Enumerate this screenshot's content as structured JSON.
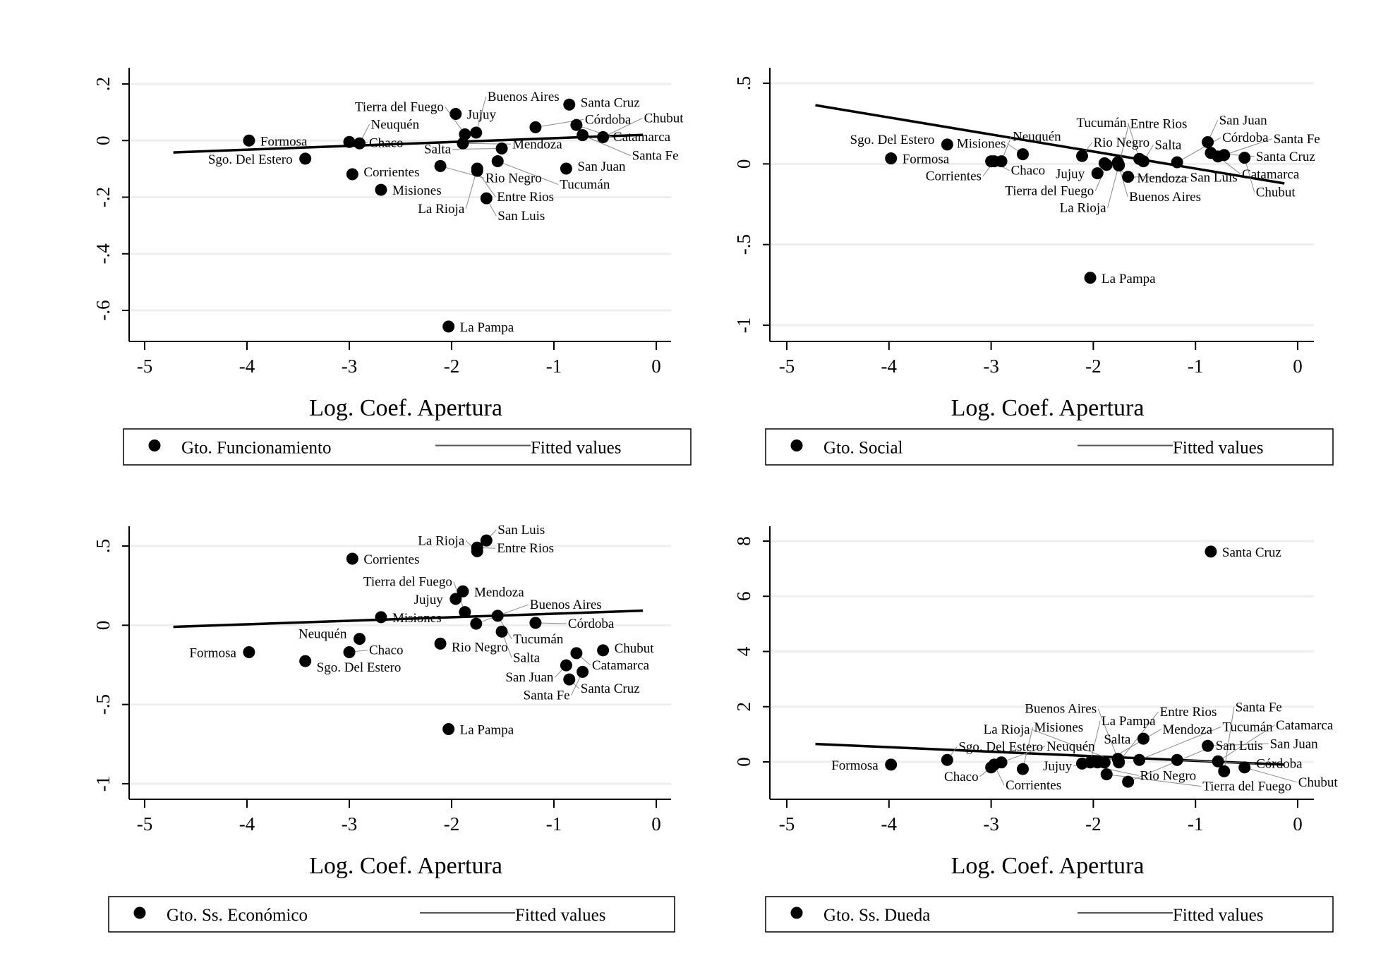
{
  "chart_data": [
    {
      "type": "scatter",
      "xlabel": "Log. Coef. Apertura",
      "ylabel": "",
      "xlim": [
        -5.1,
        0.15
      ],
      "ylim": [
        -0.72,
        0.26
      ],
      "xticks": [
        "-5",
        "-4",
        "-3",
        "-2",
        "-1",
        "0"
      ],
      "xtick_values": [
        -5,
        -4,
        -3,
        -2,
        -1,
        0
      ],
      "yticks": [
        ".2",
        "0",
        "-.2",
        "-.4",
        "-.6"
      ],
      "ytick_values": [
        0.2,
        0,
        -0.2,
        -0.4,
        -0.6
      ],
      "grid": true,
      "legend": {
        "position": "bottom",
        "series": "Gto. Funcionamiento",
        "fit": "Fitted values"
      },
      "fitted": [
        [
          -4.72,
          -0.042
        ],
        [
          -0.13,
          0.02
        ]
      ],
      "points": [
        {
          "label": "Formosa",
          "x": -3.98,
          "y": 0.0
        },
        {
          "label": "Sgo. Del Estero",
          "x": -3.43,
          "y": -0.064
        },
        {
          "label": "Chaco",
          "x": -3.0,
          "y": -0.005
        },
        {
          "label": "Corrientes",
          "x": -2.97,
          "y": -0.119
        },
        {
          "label": "Neuquén",
          "x": -2.9,
          "y": -0.01
        },
        {
          "label": "Misiones",
          "x": -2.69,
          "y": -0.174
        },
        {
          "label": "Rio Negro",
          "x": -2.11,
          "y": -0.09
        },
        {
          "label": "La Pampa",
          "x": -2.03,
          "y": -0.657
        },
        {
          "label": "Jujuy",
          "x": -1.96,
          "y": 0.094
        },
        {
          "label": "Mendoza",
          "x": -1.89,
          "y": -0.01
        },
        {
          "label": "Tierra del Fuego",
          "x": -1.87,
          "y": 0.022
        },
        {
          "label": "Buenos Aires",
          "x": -1.76,
          "y": 0.028
        },
        {
          "label": "Entre Rios",
          "x": -1.75,
          "y": -0.107
        },
        {
          "label": "La Rioja",
          "x": -1.75,
          "y": -0.099
        },
        {
          "label": "San Luis",
          "x": -1.66,
          "y": -0.204
        },
        {
          "label": "Tucumán",
          "x": -1.55,
          "y": -0.073
        },
        {
          "label": "Salta",
          "x": -1.51,
          "y": -0.028
        },
        {
          "label": "Córdoba",
          "x": -1.18,
          "y": 0.047
        },
        {
          "label": "San Juan",
          "x": -0.88,
          "y": -0.099
        },
        {
          "label": "Santa Cruz",
          "x": -0.85,
          "y": 0.127
        },
        {
          "label": "Catamarca",
          "x": -0.78,
          "y": 0.055
        },
        {
          "label": "Santa Fe",
          "x": -0.72,
          "y": 0.019
        },
        {
          "label": "Chubut",
          "x": -0.52,
          "y": 0.012
        }
      ]
    },
    {
      "type": "scatter",
      "xlabel": "Log. Coef. Apertura",
      "ylabel": "",
      "xlim": [
        -5.1,
        0.15
      ],
      "ylim": [
        -1.1,
        0.6
      ],
      "xticks": [
        "-5",
        "-4",
        "-3",
        "-2",
        "-1",
        "0"
      ],
      "xtick_values": [
        -5,
        -4,
        -3,
        -2,
        -1,
        0
      ],
      "yticks": [
        ".5",
        "0",
        "-.5",
        "-1"
      ],
      "ytick_values": [
        0.5,
        0,
        -0.5,
        -1
      ],
      "grid": true,
      "legend": {
        "position": "bottom",
        "series": "Gto. Social",
        "fit": "Fitted values"
      },
      "fitted": [
        [
          -4.72,
          0.364
        ],
        [
          -0.13,
          -0.121
        ]
      ],
      "points": [
        {
          "label": "Formosa",
          "x": -3.98,
          "y": 0.034
        },
        {
          "label": "Sgo. Del Estero",
          "x": -3.43,
          "y": 0.12
        },
        {
          "label": "Chaco",
          "x": -3.0,
          "y": 0.016
        },
        {
          "label": "Corrientes",
          "x": -2.97,
          "y": 0.016
        },
        {
          "label": "Neuquén",
          "x": -2.9,
          "y": 0.016
        },
        {
          "label": "Misiones",
          "x": -2.69,
          "y": 0.06
        },
        {
          "label": "Rio Negro",
          "x": -2.11,
          "y": 0.049
        },
        {
          "label": "La Pampa",
          "x": -2.03,
          "y": -0.706
        },
        {
          "label": "Jujuy",
          "x": -1.96,
          "y": -0.058
        },
        {
          "label": "Mendoza",
          "x": -1.89,
          "y": 0.004
        },
        {
          "label": "Tierra del Fuego",
          "x": -1.87,
          "y": -0.006
        },
        {
          "label": "Buenos Aires",
          "x": -1.76,
          "y": 0.01
        },
        {
          "label": "Entre Rios",
          "x": -1.75,
          "y": -0.01
        },
        {
          "label": "La Rioja",
          "x": -1.75,
          "y": -0.006
        },
        {
          "label": "San Luis",
          "x": -1.66,
          "y": -0.08
        },
        {
          "label": "Tucumán",
          "x": -1.55,
          "y": 0.031
        },
        {
          "label": "Salta",
          "x": -1.51,
          "y": 0.016
        },
        {
          "label": "Córdoba",
          "x": -1.18,
          "y": 0.01
        },
        {
          "label": "San Juan",
          "x": -0.88,
          "y": 0.135
        },
        {
          "label": "Santa Cruz",
          "x": -0.85,
          "y": 0.068
        },
        {
          "label": "Catamarca",
          "x": -0.78,
          "y": 0.046
        },
        {
          "label": "Santa Fe",
          "x": -0.72,
          "y": 0.055
        },
        {
          "label": "Chubut",
          "x": -0.52,
          "y": 0.038
        }
      ]
    },
    {
      "type": "scatter",
      "xlabel": "Log. Coef. Apertura",
      "ylabel": "",
      "xlim": [
        -5.1,
        0.15
      ],
      "ylim": [
        -1.1,
        0.6
      ],
      "xticks": [
        "-5",
        "-4",
        "-3",
        "-2",
        "-1",
        "0"
      ],
      "xtick_values": [
        -5,
        -4,
        -3,
        -2,
        -1,
        0
      ],
      "yticks": [
        ".5",
        "0",
        "-.5",
        "-1"
      ],
      "ytick_values": [
        0.5,
        0,
        -0.5,
        -1
      ],
      "grid": true,
      "legend": {
        "position": "bottom",
        "series": "Gto. Ss. Económico",
        "fit": "Fitted values"
      },
      "fitted": [
        [
          -4.72,
          -0.01
        ],
        [
          -0.13,
          0.092
        ]
      ],
      "points": [
        {
          "label": "Formosa",
          "x": -3.98,
          "y": -0.17
        },
        {
          "label": "Sgo. Del Estero",
          "x": -3.43,
          "y": -0.226
        },
        {
          "label": "Chaco",
          "x": -3.0,
          "y": -0.17
        },
        {
          "label": "Corrientes",
          "x": -2.97,
          "y": 0.42
        },
        {
          "label": "Neuquén",
          "x": -2.9,
          "y": -0.086
        },
        {
          "label": "Misiones",
          "x": -2.69,
          "y": 0.051
        },
        {
          "label": "Rio Negro",
          "x": -2.11,
          "y": -0.116
        },
        {
          "label": "La Pampa",
          "x": -2.03,
          "y": -0.655
        },
        {
          "label": "Jujuy",
          "x": -1.96,
          "y": 0.166
        },
        {
          "label": "Mendoza",
          "x": -1.89,
          "y": 0.214
        },
        {
          "label": "Tierra del Fuego",
          "x": -1.87,
          "y": 0.083
        },
        {
          "label": "Buenos Aires",
          "x": -1.76,
          "y": 0.01
        },
        {
          "label": "Entre Rios",
          "x": -1.75,
          "y": 0.49
        },
        {
          "label": "La Rioja",
          "x": -1.75,
          "y": 0.467
        },
        {
          "label": "San Luis",
          "x": -1.66,
          "y": 0.535
        },
        {
          "label": "Tucumán",
          "x": -1.55,
          "y": 0.06
        },
        {
          "label": "Salta",
          "x": -1.51,
          "y": -0.04
        },
        {
          "label": "Córdoba",
          "x": -1.18,
          "y": 0.015
        },
        {
          "label": "San Juan",
          "x": -0.88,
          "y": -0.253
        },
        {
          "label": "Santa Cruz",
          "x": -0.85,
          "y": -0.342
        },
        {
          "label": "Catamarca",
          "x": -0.78,
          "y": -0.176
        },
        {
          "label": "Santa Fe",
          "x": -0.72,
          "y": -0.294
        },
        {
          "label": "Chubut",
          "x": -0.52,
          "y": -0.158
        }
      ]
    },
    {
      "type": "scatter",
      "xlabel": "Log. Coef. Apertura",
      "ylabel": "",
      "xlim": [
        -5.1,
        0.15
      ],
      "ylim": [
        -1.3,
        8.5
      ],
      "xticks": [
        "-5",
        "-4",
        "-3",
        "-2",
        "-1",
        "0"
      ],
      "xtick_values": [
        -5,
        -4,
        -3,
        -2,
        -1,
        0
      ],
      "yticks": [
        "8",
        "6",
        "4",
        "2",
        "0"
      ],
      "ytick_values": [
        8,
        6,
        4,
        2,
        0
      ],
      "grid": true,
      "legend": {
        "position": "bottom",
        "series": "Gto. Ss. Dueda",
        "fit": "Fitted values"
      },
      "fitted": [
        [
          -4.72,
          0.65
        ],
        [
          -0.13,
          -0.1
        ]
      ],
      "points": [
        {
          "label": "Formosa",
          "x": -3.98,
          "y": -0.1
        },
        {
          "label": "Sgo. Del Estero",
          "x": -3.43,
          "y": 0.07
        },
        {
          "label": "Chaco",
          "x": -3.0,
          "y": -0.2
        },
        {
          "label": "Corrientes",
          "x": -2.97,
          "y": -0.1
        },
        {
          "label": "Neuquén",
          "x": -2.9,
          "y": -0.02
        },
        {
          "label": "Misiones",
          "x": -2.69,
          "y": -0.26
        },
        {
          "label": "Rio Negro",
          "x": -2.11,
          "y": -0.06
        },
        {
          "label": "La Pampa",
          "x": -2.03,
          "y": -0.02
        },
        {
          "label": "Jujuy",
          "x": -1.96,
          "y": -0.02
        },
        {
          "label": "Mendoza",
          "x": -1.89,
          "y": -0.02
        },
        {
          "label": "Tierra del Fuego",
          "x": -1.87,
          "y": -0.45
        },
        {
          "label": "Buenos Aires",
          "x": -1.76,
          "y": 0.11
        },
        {
          "label": "Entre Rios",
          "x": -1.75,
          "y": 0.0
        },
        {
          "label": "La Rioja",
          "x": -1.75,
          "y": -0.02
        },
        {
          "label": "San Luis",
          "x": -1.66,
          "y": -0.72
        },
        {
          "label": "Tucumán",
          "x": -1.55,
          "y": 0.07
        },
        {
          "label": "Salta",
          "x": -1.51,
          "y": 0.84
        },
        {
          "label": "Córdoba",
          "x": -1.18,
          "y": 0.07
        },
        {
          "label": "San Juan",
          "x": -0.88,
          "y": 0.58
        },
        {
          "label": "Santa Cruz",
          "x": -0.85,
          "y": 7.62
        },
        {
          "label": "Catamarca",
          "x": -0.78,
          "y": 0.02
        },
        {
          "label": "Santa Fe",
          "x": -0.72,
          "y": -0.34
        },
        {
          "label": "Chubut",
          "x": -0.52,
          "y": -0.2
        }
      ]
    }
  ]
}
